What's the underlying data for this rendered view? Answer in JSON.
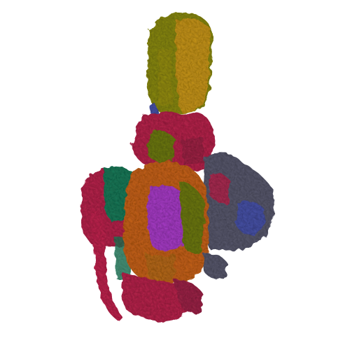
{
  "image": {
    "subject": "molecular-surface-rendering",
    "background": "#ffffff"
  },
  "palette": {
    "olive": "#8a8a12",
    "gold": "#c8961a",
    "crimson": "#b8284e",
    "orange": "#c8641a",
    "magenta": "#a83cc8",
    "slate": "#5a5a6e",
    "teal": "#1e7a5a",
    "blue": "#4a52a8",
    "green": "#6e7a18"
  }
}
